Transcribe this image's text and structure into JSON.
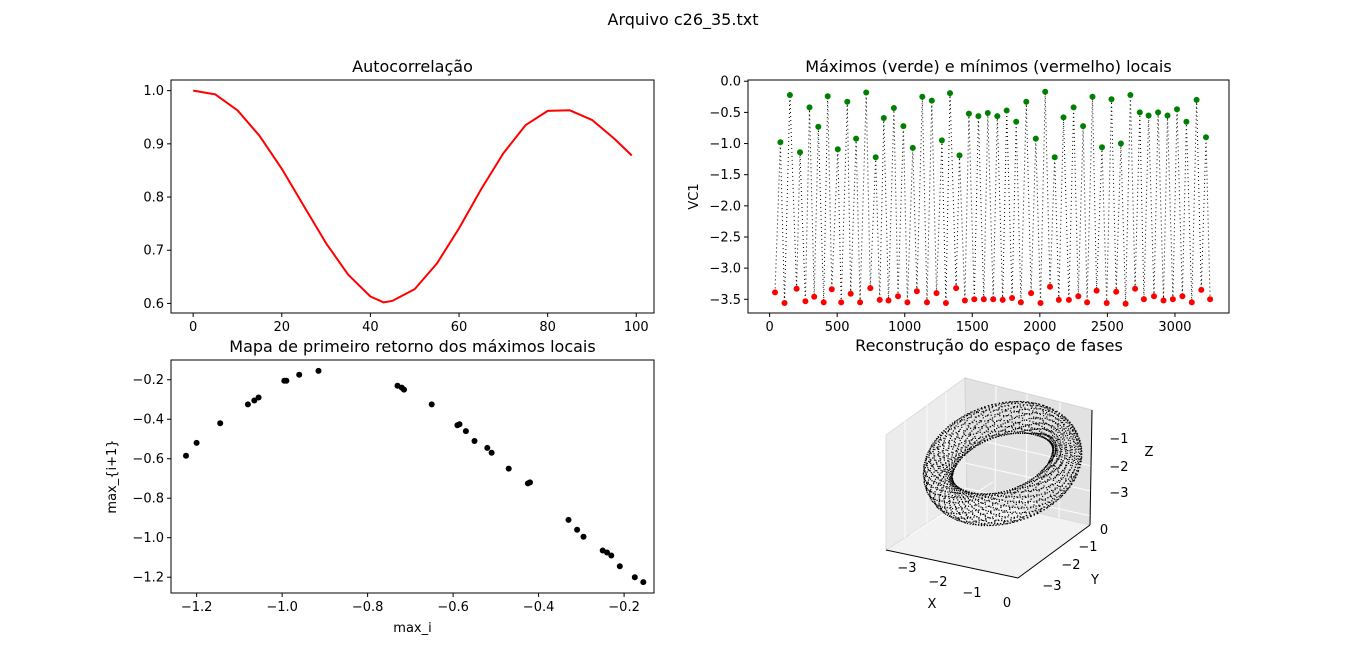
{
  "figure": {
    "suptitle": "Arquivo c26_35.txt"
  },
  "chart_data": [
    {
      "type": "line",
      "title": "Autocorrelação",
      "xlabel": "",
      "ylabel": "",
      "xlim": [
        -5,
        104
      ],
      "ylim": [
        0.582,
        1.02
      ],
      "xticks": [
        0,
        20,
        40,
        60,
        80,
        100
      ],
      "yticks": [
        0.6,
        0.7,
        0.8,
        0.9,
        1.0
      ],
      "ytick_labels": [
        "0.6",
        "0.7",
        "0.8",
        "0.9",
        "1.0"
      ],
      "grid": false,
      "series": [
        {
          "color": "#ff0000",
          "x": [
            0,
            5,
            10,
            15,
            20,
            25,
            30,
            35,
            40,
            43,
            45,
            50,
            55,
            60,
            65,
            70,
            75,
            80,
            85,
            90,
            95,
            99
          ],
          "y": [
            1.0,
            0.993,
            0.963,
            0.915,
            0.853,
            0.783,
            0.713,
            0.654,
            0.613,
            0.602,
            0.605,
            0.627,
            0.675,
            0.741,
            0.815,
            0.882,
            0.935,
            0.962,
            0.963,
            0.945,
            0.91,
            0.878
          ]
        }
      ]
    },
    {
      "type": "scatter",
      "title": "Máximos (verde) e mínimos (vermelho) locais",
      "xlabel": "",
      "ylabel": "VC1",
      "xlim": [
        -160,
        3400
      ],
      "ylim": [
        -3.72,
        0.02
      ],
      "xticks": [
        0,
        500,
        1000,
        1500,
        2000,
        2500,
        3000
      ],
      "yticks": [
        0.0,
        -0.5,
        -1.0,
        -1.5,
        -2.0,
        -2.5,
        -3.0,
        -3.5
      ],
      "ytick_labels": [
        "0.0",
        "−0.5",
        "−1.0",
        "−1.5",
        "−2.0",
        "−2.5",
        "−3.0",
        "−3.5"
      ],
      "grid": false,
      "series": [
        {
          "name": "",
          "color": "#008000",
          "x": [
            80,
            150,
            225,
            295,
            360,
            430,
            505,
            575,
            640,
            715,
            785,
            845,
            920,
            990,
            1060,
            1130,
            1200,
            1275,
            1335,
            1405,
            1475,
            1545,
            1615,
            1685,
            1755,
            1825,
            1900,
            1970,
            2040,
            2110,
            2175,
            2250,
            2320,
            2390,
            2460,
            2530,
            2600,
            2670,
            2740,
            2805,
            2875,
            2945,
            3015,
            3085,
            3160,
            3230
          ],
          "y": [
            -0.98,
            -0.22,
            -1.14,
            -0.42,
            -0.73,
            -0.24,
            -1.09,
            -0.33,
            -0.92,
            -0.18,
            -1.22,
            -0.59,
            -0.43,
            -0.72,
            -1.07,
            -0.25,
            -0.31,
            -0.95,
            -0.19,
            -1.19,
            -0.52,
            -0.56,
            -0.51,
            -0.56,
            -0.47,
            -0.65,
            -0.33,
            -0.92,
            -0.17,
            -1.22,
            -0.58,
            -0.42,
            -0.72,
            -0.25,
            -1.06,
            -0.29,
            -1.0,
            -0.22,
            -0.5,
            -0.55,
            -0.5,
            -0.55,
            -0.45,
            -0.65,
            -0.3,
            -0.9
          ]
        },
        {
          "name": "",
          "color": "#ff0000",
          "x": [
            40,
            110,
            200,
            265,
            330,
            400,
            460,
            530,
            600,
            670,
            745,
            815,
            880,
            950,
            1020,
            1090,
            1165,
            1235,
            1305,
            1380,
            1445,
            1515,
            1585,
            1655,
            1725,
            1795,
            1860,
            1935,
            2005,
            2075,
            2140,
            2215,
            2285,
            2350,
            2420,
            2495,
            2565,
            2635,
            2705,
            2770,
            2845,
            2915,
            2985,
            3055,
            3125,
            3195,
            3260
          ],
          "y": [
            -3.39,
            -3.56,
            -3.33,
            -3.53,
            -3.46,
            -3.55,
            -3.34,
            -3.55,
            -3.41,
            -3.55,
            -3.32,
            -3.51,
            -3.52,
            -3.45,
            -3.55,
            -3.37,
            -3.55,
            -3.4,
            -3.56,
            -3.32,
            -3.52,
            -3.5,
            -3.5,
            -3.5,
            -3.51,
            -3.48,
            -3.55,
            -3.4,
            -3.56,
            -3.3,
            -3.51,
            -3.51,
            -3.45,
            -3.55,
            -3.36,
            -3.56,
            -3.38,
            -3.57,
            -3.33,
            -3.5,
            -3.45,
            -3.52,
            -3.5,
            -3.45,
            -3.55,
            -3.35,
            -3.5
          ]
        }
      ]
    },
    {
      "type": "scatter",
      "title": "Mapa de primeiro retorno dos máximos locais",
      "xlabel": "max_i",
      "ylabel": "max_{i+1}",
      "xlim": [
        -1.26,
        -0.13
      ],
      "ylim": [
        -1.28,
        -0.1
      ],
      "xticks": [
        -1.2,
        -1.0,
        -0.8,
        -0.6,
        -0.4,
        -0.2
      ],
      "xtick_labels": [
        "−1.2",
        "−1.0",
        "−0.8",
        "−0.6",
        "−0.4",
        "−0.2"
      ],
      "yticks": [
        -0.2,
        -0.4,
        -0.6,
        -0.8,
        -1.0,
        -1.2
      ],
      "ytick_labels": [
        "−0.2",
        "−0.4",
        "−0.6",
        "−0.8",
        "−1.0",
        "−1.2"
      ],
      "grid": false,
      "series": [
        {
          "color": "#000000",
          "x": [
            -1.225,
            -1.2,
            -1.145,
            -1.08,
            -1.065,
            -1.055,
            -0.995,
            -0.99,
            -0.96,
            -0.915,
            -0.73,
            -0.72,
            -0.715,
            -0.65,
            -0.59,
            -0.585,
            -0.57,
            -0.55,
            -0.52,
            -0.51,
            -0.47,
            -0.425,
            -0.42,
            -0.33,
            -0.31,
            -0.295,
            -0.25,
            -0.24,
            -0.23,
            -0.21,
            -0.175,
            -0.155
          ],
          "y": [
            -0.585,
            -0.52,
            -0.42,
            -0.325,
            -0.305,
            -0.29,
            -0.205,
            -0.205,
            -0.175,
            -0.155,
            -0.23,
            -0.24,
            -0.25,
            -0.325,
            -0.43,
            -0.425,
            -0.46,
            -0.51,
            -0.545,
            -0.57,
            -0.65,
            -0.725,
            -0.72,
            -0.91,
            -0.96,
            -0.995,
            -1.065,
            -1.075,
            -1.09,
            -1.145,
            -1.2,
            -1.225
          ]
        }
      ]
    },
    {
      "type": "scatter3d",
      "title": "Reconstrução do espaço de fases",
      "xlabel": "X",
      "ylabel": "Y",
      "zlabel": "Z",
      "xticks": [
        "−3",
        "−2",
        "−1",
        "0"
      ],
      "yticks": [
        "−3",
        "−2",
        "−1",
        "0"
      ],
      "zticks": [
        "−1",
        "−2",
        "−3"
      ],
      "marker_color": "#000000"
    }
  ]
}
